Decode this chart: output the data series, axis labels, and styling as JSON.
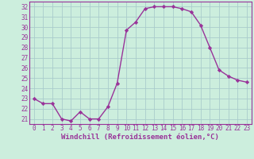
{
  "x": [
    0,
    1,
    2,
    3,
    4,
    5,
    6,
    7,
    8,
    9,
    10,
    11,
    12,
    13,
    14,
    15,
    16,
    17,
    18,
    19,
    20,
    21,
    22,
    23
  ],
  "y": [
    23.0,
    22.5,
    22.5,
    21.0,
    20.8,
    21.7,
    21.0,
    21.0,
    22.2,
    24.5,
    29.7,
    30.5,
    31.8,
    32.0,
    32.0,
    32.0,
    31.8,
    31.5,
    30.2,
    28.0,
    25.8,
    25.2,
    24.8,
    24.6
  ],
  "xlabel": "Windchill (Refroidissement éolien,°C)",
  "xlim": [
    -0.5,
    23.5
  ],
  "ylim": [
    20.5,
    32.5
  ],
  "yticks": [
    21,
    22,
    23,
    24,
    25,
    26,
    27,
    28,
    29,
    30,
    31,
    32
  ],
  "xticks": [
    0,
    1,
    2,
    3,
    4,
    5,
    6,
    7,
    8,
    9,
    10,
    11,
    12,
    13,
    14,
    15,
    16,
    17,
    18,
    19,
    20,
    21,
    22,
    23
  ],
  "xtick_labels": [
    "0",
    "1",
    "2",
    "3",
    "4",
    "5",
    "6",
    "7",
    "8",
    "9",
    "10",
    "11",
    "12",
    "13",
    "14",
    "15",
    "16",
    "17",
    "18",
    "19",
    "20",
    "21",
    "22",
    "23"
  ],
  "line_color": "#993399",
  "marker": "D",
  "marker_size": 2.2,
  "line_width": 1.0,
  "bg_color": "#cceedd",
  "grid_color": "#aacccc",
  "tick_fontsize": 5.5,
  "xlabel_fontsize": 6.5
}
